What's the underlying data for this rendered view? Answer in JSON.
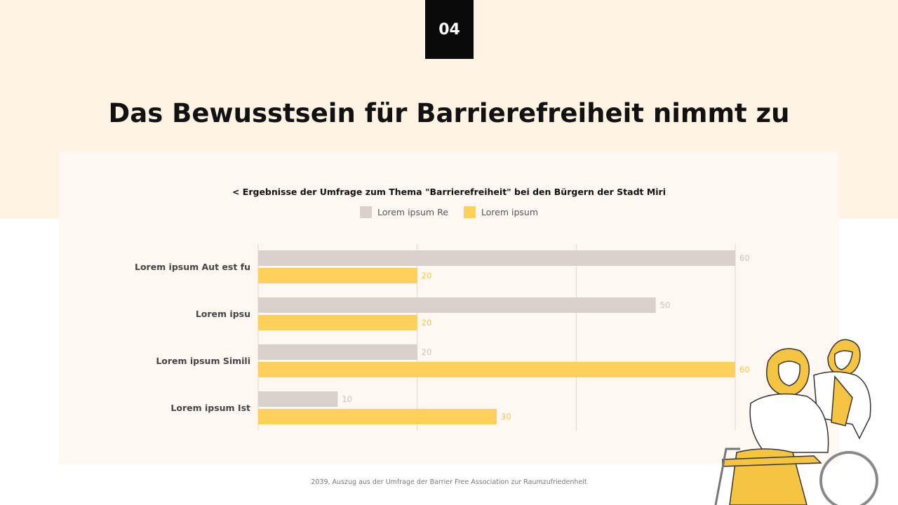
{
  "slide_number": "04",
  "title": "Das Bewusstsein für Barrierefreiheit nimmt zu",
  "source": "2039, Auszug aus der Umfrage der Barrier Free Association zur Raumzufriedenheit",
  "chart_data": {
    "type": "bar",
    "orientation": "horizontal",
    "title": "< Ergebnisse der Umfrage zum Thema \"Barrierefreiheit\" bei den Bürgern der Stadt Miri",
    "categories": [
      "Lorem ipsum Aut est fu",
      "Lorem ipsu",
      "Lorem ipsum Simili",
      "Lorem ipsum Ist"
    ],
    "series": [
      {
        "name": "Lorem ipsum Re",
        "values": [
          60,
          50,
          20,
          10
        ],
        "color": "#d8d0cb",
        "label_color": "#c9c2bd"
      },
      {
        "name": "Lorem ipsum",
        "values": [
          20,
          20,
          60,
          30
        ],
        "color": "#ffd15c",
        "label_color": "#f2c84b"
      }
    ],
    "xlim": [
      0,
      60
    ],
    "gridlines": [
      0,
      20,
      40,
      60
    ],
    "grid": true,
    "legend_position": "top"
  }
}
